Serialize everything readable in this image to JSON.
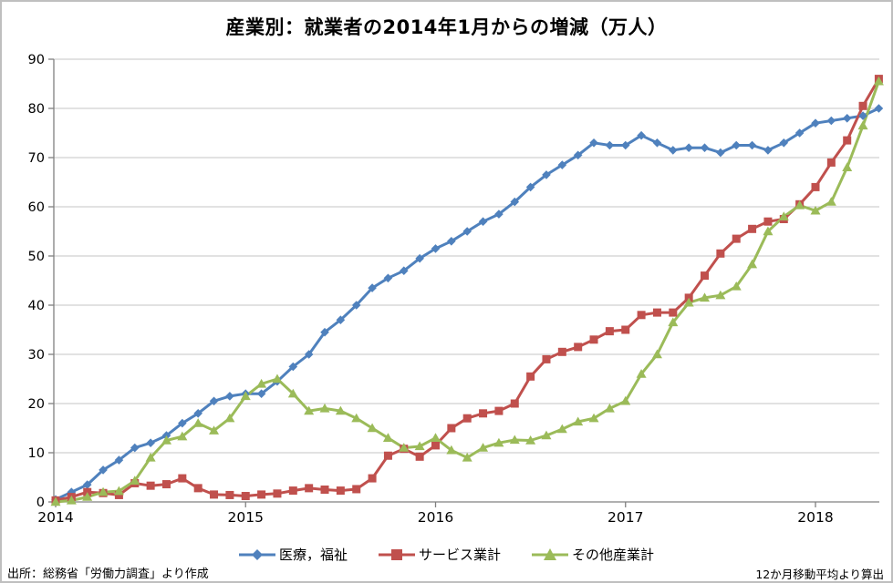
{
  "title": "産業別：就業者の2014年1月からの増減（万人）",
  "footer": {
    "source": "出所：総務省「労働力調査」より作成",
    "note": "12か月移動平均より算出"
  },
  "chart_data": {
    "type": "line",
    "title": "産業別：就業者の2014年1月からの増減（万人）",
    "x_unit": "month",
    "x_start": "2014-01",
    "x_end": "2018-05",
    "x_tick_labels": [
      "2014",
      "2015",
      "2016",
      "2017",
      "2018"
    ],
    "y_ticks": [
      0,
      10,
      20,
      30,
      40,
      50,
      60,
      70,
      80,
      90
    ],
    "ylim": [
      0,
      90
    ],
    "grid": true,
    "legend_position": "bottom",
    "axis_color": "#808080",
    "grid_color": "#c6c6c6",
    "series": [
      {
        "name": "医療，福祉",
        "color": "#4F81BD",
        "marker": "diamond",
        "values": [
          0.5,
          2,
          3.5,
          6.5,
          8.5,
          11,
          12,
          13.5,
          16,
          18,
          20.5,
          21.5,
          22,
          22,
          24.5,
          27.5,
          30,
          34.5,
          37,
          40,
          43.5,
          45.5,
          47,
          49.5,
          51.5,
          53,
          55,
          57,
          58.5,
          61,
          64,
          66.5,
          68.5,
          70.5,
          73,
          72.5,
          72.5,
          74.5,
          73,
          71.5,
          72,
          72,
          71,
          72.5,
          72.5,
          71.5,
          73,
          75,
          77,
          77.5,
          78,
          78.5,
          80
        ]
      },
      {
        "name": "サービス業計",
        "color": "#C0504D",
        "marker": "square",
        "values": [
          0.3,
          1,
          2,
          1.8,
          1.4,
          3.8,
          3.3,
          3.6,
          4.8,
          2.8,
          1.5,
          1.4,
          1.2,
          1.5,
          1.7,
          2.3,
          2.8,
          2.5,
          2.3,
          2.6,
          4.8,
          9.4,
          10.8,
          9.2,
          11.5,
          15,
          17,
          18,
          18.5,
          20,
          25.5,
          29,
          30.5,
          31.5,
          33,
          34.7,
          35,
          38,
          38.5,
          38.5,
          41.5,
          46,
          50.5,
          53.5,
          55.5,
          57,
          57.5,
          60.5,
          64,
          69,
          73.5,
          80.5,
          86
        ]
      },
      {
        "name": "その他産業計",
        "color": "#9BBB59",
        "marker": "triangle",
        "values": [
          0,
          0.3,
          1,
          2,
          2.2,
          4.3,
          9,
          12.5,
          13.3,
          16,
          14.5,
          17,
          21.5,
          24,
          25,
          22,
          18.5,
          19,
          18.5,
          17,
          15,
          13,
          11,
          11.3,
          13,
          10.5,
          9,
          11,
          12,
          12.6,
          12.5,
          13.5,
          14.8,
          16.3,
          17,
          19,
          20.5,
          26,
          30,
          36.5,
          40.5,
          41.5,
          42,
          43.8,
          48.3,
          55,
          58,
          60.3,
          59.2,
          61,
          68,
          76.5,
          85.5
        ]
      }
    ]
  }
}
